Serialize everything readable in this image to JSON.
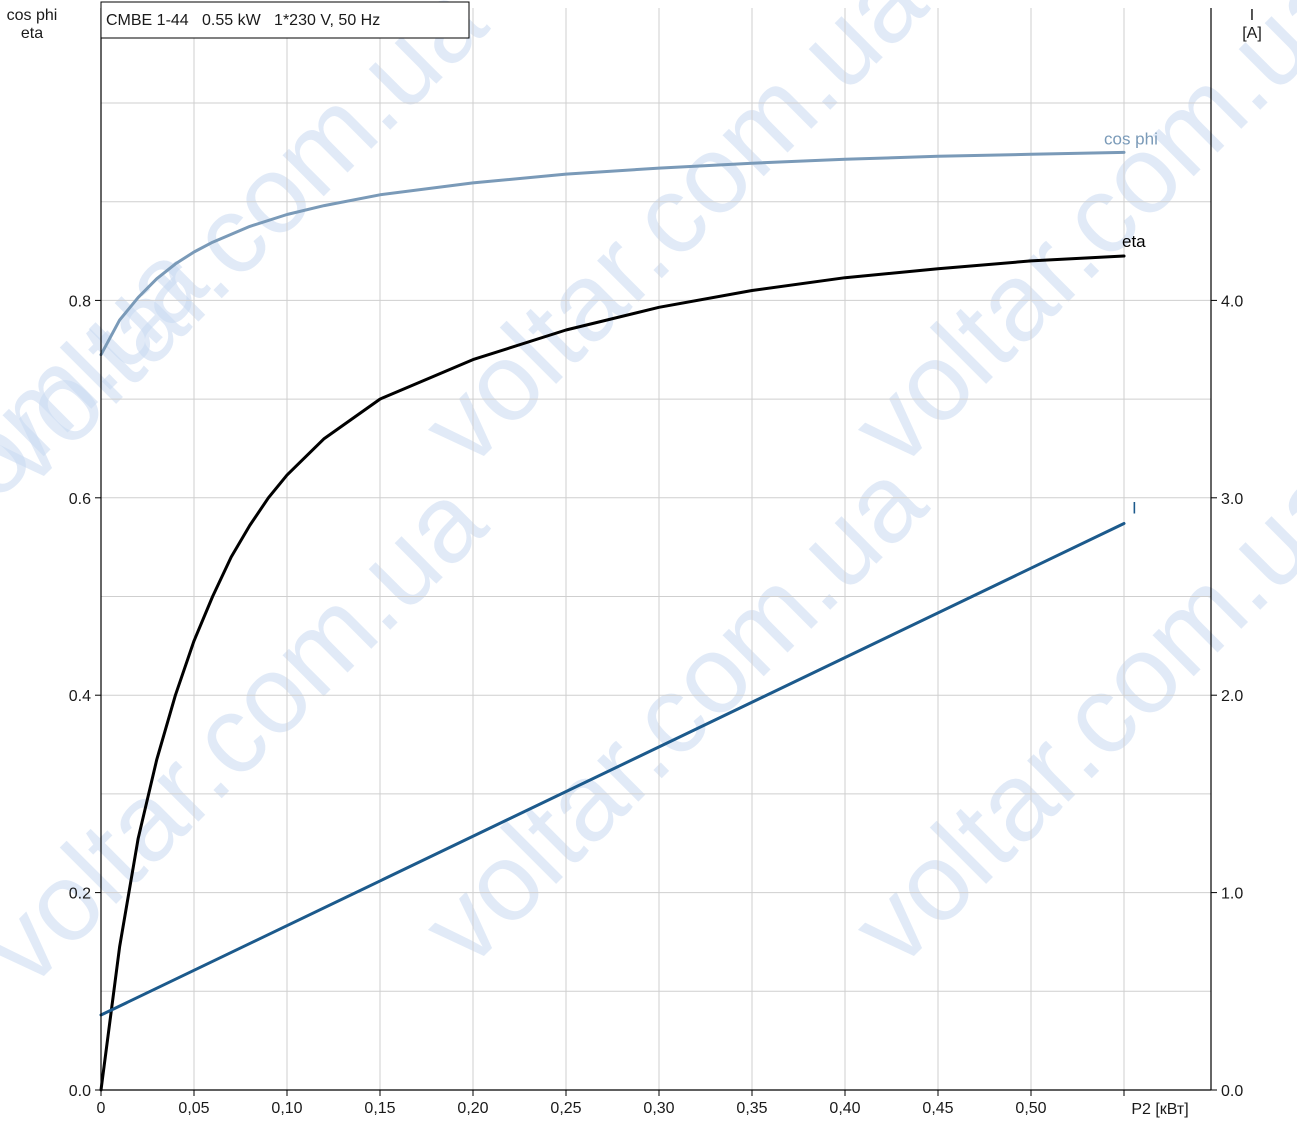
{
  "chart_data": {
    "type": "line",
    "title": "CMBE 1-44   0.55 kW   1*230 V, 50 Hz",
    "watermark": "voltar.com.ua",
    "xlabel": "P2 [кВт]",
    "ylabel_left": [
      "cos phi",
      "eta"
    ],
    "ylabel_right": [
      "I",
      "[A]"
    ],
    "xlim": [
      0,
      0.6
    ],
    "ylim_left": [
      0,
      1.0
    ],
    "ylim_right": [
      0,
      5.0
    ],
    "grid": true,
    "x_ticks": [
      "0",
      "0,05",
      "0,10",
      "0,15",
      "0,20",
      "0,25",
      "0,30",
      "0,35",
      "0,40",
      "0,45",
      "0,50"
    ],
    "y_left_ticks": [
      "0.0",
      "0.2",
      "0.4",
      "0.6",
      "0.8"
    ],
    "y_right_ticks": [
      "0.0",
      "1.0",
      "2.0",
      "3.0",
      "4.0"
    ],
    "series": [
      {
        "name": "cos phi",
        "axis": "left",
        "color": "#7a9ab8",
        "x": [
          0,
          0.01,
          0.02,
          0.03,
          0.04,
          0.05,
          0.06,
          0.08,
          0.1,
          0.12,
          0.15,
          0.2,
          0.25,
          0.3,
          0.35,
          0.4,
          0.45,
          0.5,
          0.55
        ],
        "y": [
          0.745,
          0.78,
          0.803,
          0.822,
          0.837,
          0.849,
          0.859,
          0.875,
          0.887,
          0.896,
          0.907,
          0.919,
          0.928,
          0.934,
          0.939,
          0.943,
          0.946,
          0.948,
          0.95
        ]
      },
      {
        "name": "eta",
        "axis": "left",
        "color": "#000000",
        "x": [
          0,
          0.01,
          0.02,
          0.03,
          0.04,
          0.05,
          0.06,
          0.07,
          0.08,
          0.09,
          0.1,
          0.12,
          0.15,
          0.2,
          0.25,
          0.3,
          0.35,
          0.4,
          0.45,
          0.5,
          0.55
        ],
        "y": [
          0.0,
          0.145,
          0.255,
          0.335,
          0.4,
          0.455,
          0.5,
          0.54,
          0.572,
          0.6,
          0.623,
          0.66,
          0.7,
          0.74,
          0.77,
          0.793,
          0.81,
          0.823,
          0.832,
          0.84,
          0.845
        ]
      },
      {
        "name": "I",
        "axis": "right",
        "color": "#1c5a8c",
        "x": [
          0,
          0.55
        ],
        "y": [
          0.38,
          2.87
        ]
      }
    ]
  }
}
